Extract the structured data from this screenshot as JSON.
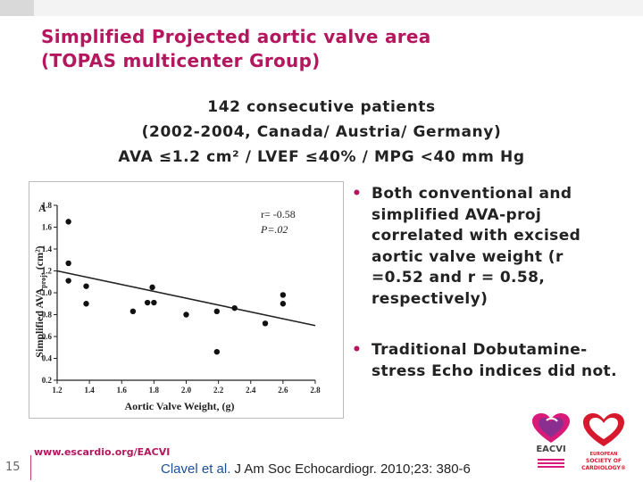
{
  "slide": {
    "title_line1": "Simplified Projected aortic valve area",
    "title_line2": "(TOPAS multicenter Group)",
    "subtitle_line1": "142 consecutive patients",
    "subtitle_line2": "(2002-2004, Canada/ Austria/ Germany)",
    "criteria": "AVA ≤1.2 cm² / LVEF ≤40% / MPG <40 mm Hg",
    "bullets": [
      "Both conventional and simplified AVA-proj correlated with excised aortic valve weight (r =0.52 and r = 0.58, respectively)",
      "Traditional Dobutamine-stress Echo indices did not."
    ],
    "page_number": "15",
    "footer_url": "www.escardio.org/EACVI",
    "citation_main": "Clavel et al.",
    "citation_rest": " J Am Soc Echocardiogr. 2010;23: 380-6",
    "accent_color": "#b5175f",
    "logos": {
      "eacvi_text": "EACVI",
      "esc_text_1": "EUROPEAN",
      "esc_text_2": "SOCIETY OF",
      "esc_text_3": "CARDIOLOGY®"
    }
  },
  "chart_data": {
    "type": "scatter",
    "panel_label": "A",
    "xlabel": "Aortic Valve Weight, (g)",
    "ylabel_main": "Simplified AVA",
    "ylabel_sub": "proj",
    "ylabel_unit": ", (cm²)",
    "xlim": [
      1.2,
      2.8
    ],
    "ylim": [
      0.2,
      1.8
    ],
    "x_ticks": [
      "1.2",
      "1.4",
      "1.6",
      "1.8",
      "2.0",
      "2.2",
      "2.4",
      "2.6",
      "2.8"
    ],
    "y_ticks": [
      "0.2",
      "0.4",
      "0.6",
      "0.8",
      "1.0",
      "1.2",
      "1.4",
      "1.6",
      "1.8"
    ],
    "annotation_r": "r= -0.58",
    "annotation_p": "P=.02",
    "points": [
      {
        "x": 1.27,
        "y": 1.65
      },
      {
        "x": 1.27,
        "y": 1.27
      },
      {
        "x": 1.27,
        "y": 1.11
      },
      {
        "x": 1.38,
        "y": 1.06
      },
      {
        "x": 1.38,
        "y": 0.9
      },
      {
        "x": 1.67,
        "y": 0.83
      },
      {
        "x": 1.76,
        "y": 0.91
      },
      {
        "x": 1.8,
        "y": 0.91
      },
      {
        "x": 1.79,
        "y": 1.05
      },
      {
        "x": 2.0,
        "y": 0.8
      },
      {
        "x": 2.19,
        "y": 0.83
      },
      {
        "x": 2.19,
        "y": 0.46
      },
      {
        "x": 2.3,
        "y": 0.86
      },
      {
        "x": 2.49,
        "y": 0.72
      },
      {
        "x": 2.6,
        "y": 0.98
      },
      {
        "x": 2.6,
        "y": 0.9
      }
    ],
    "trendline": {
      "x": [
        1.2,
        2.8
      ],
      "y": [
        1.2,
        0.7
      ]
    }
  }
}
